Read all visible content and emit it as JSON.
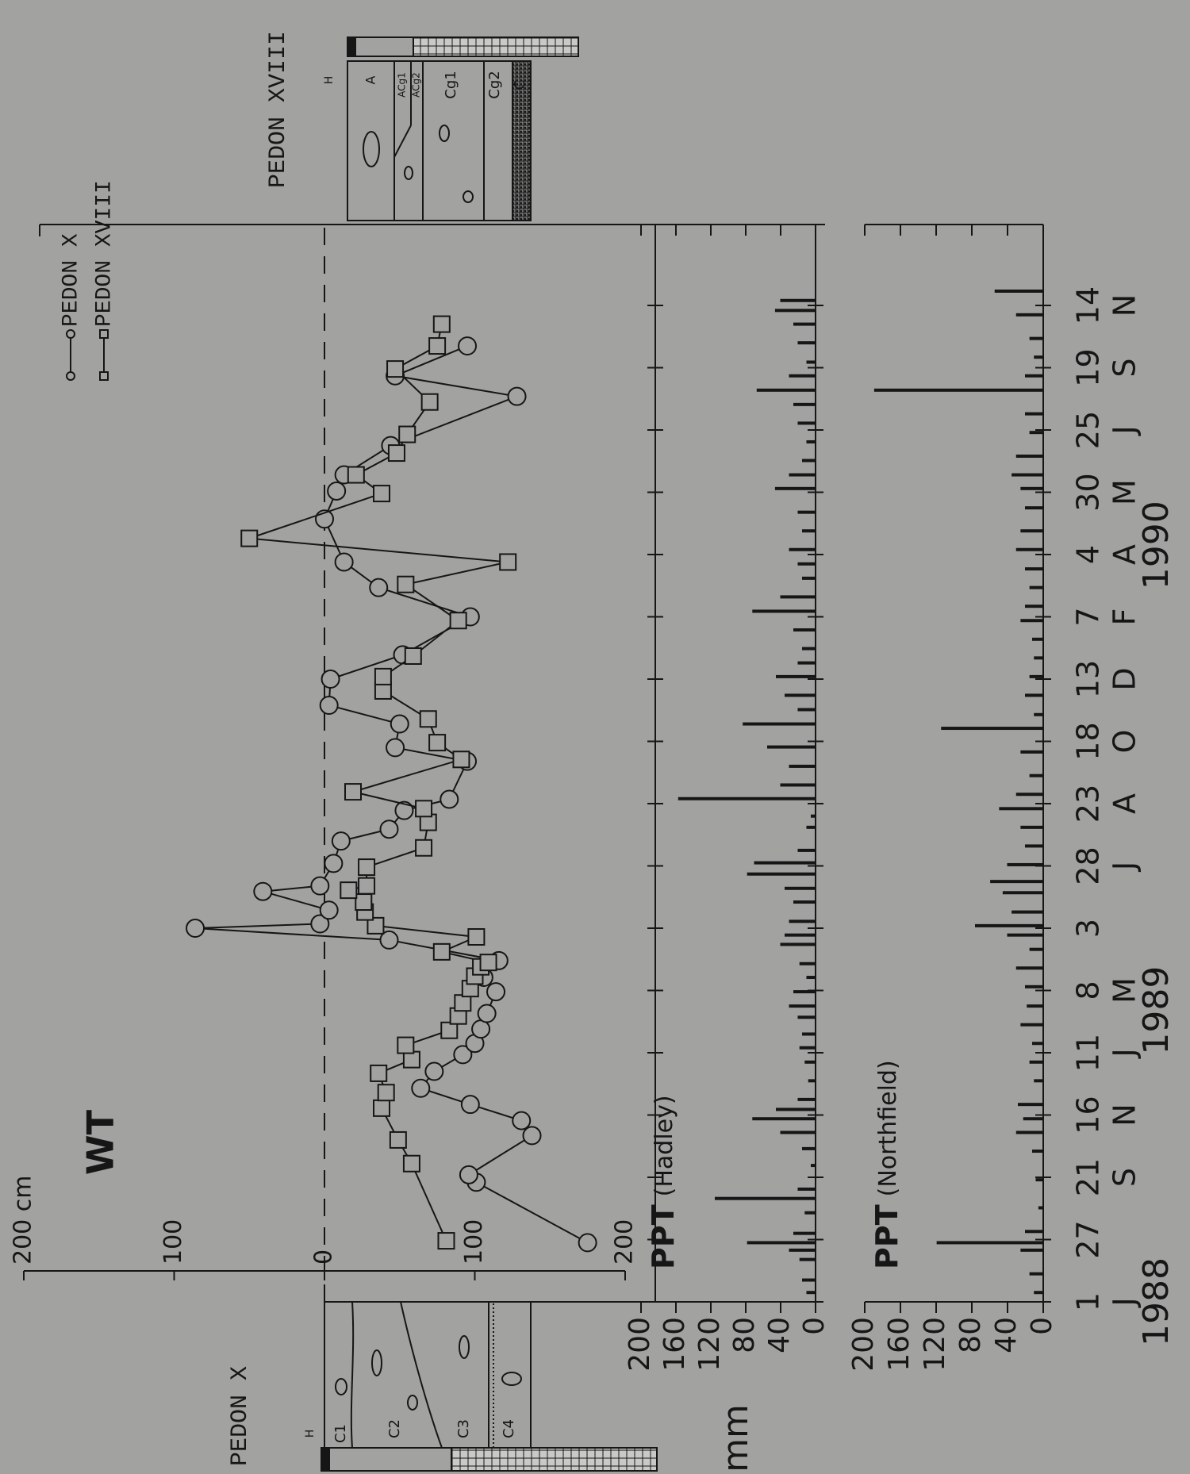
{
  "chart_data": [
    {
      "type": "line",
      "title": "WT",
      "xlim": [
        0,
        17.3
      ],
      "ylim": [
        -200,
        200
      ],
      "yticks": [
        {
          "value": -200,
          "label": "200 cm"
        },
        {
          "value": -100,
          "label": "100"
        },
        0,
        100,
        200
      ],
      "zero_line_dashed": true,
      "legend": "upper-right",
      "series": [
        {
          "name": "PEDON X",
          "marker": "circle",
          "color": "#161616",
          "x": [
            0.95,
            1.92,
            2.04,
            2.67,
            2.91,
            3.17,
            3.43,
            3.7,
            3.97,
            4.15,
            4.38,
            4.63,
            4.98,
            5.21,
            5.48,
            5.81,
            6,
            6.07,
            6.29,
            6.59,
            6.68,
            7.04,
            7.4,
            7.59,
            7.89,
            8.07,
            8.68,
            8.9,
            9.28,
            9.58,
            10,
            10.39,
            11,
            11.47,
            11.88,
            12.57,
            13.02,
            13.28,
            13.75,
            14.54,
            14.87,
            15.35
          ],
          "values": [
            175,
            101,
            96,
            138,
            131,
            97,
            64,
            73,
            92,
            100,
            104,
            108,
            114,
            106,
            116,
            43,
            -86,
            -3,
            3,
            -41,
            -3,
            6,
            11,
            43,
            53,
            83,
            95,
            47,
            50,
            3,
            4,
            52,
            97,
            36,
            13,
            0,
            8,
            13,
            44,
            128,
            47,
            95
          ]
        },
        {
          "name": "PEDON XVIII",
          "marker": "square",
          "color": "#161616",
          "x": [
            0.98,
            2.22,
            2.6,
            3.11,
            3.36,
            3.67,
            3.89,
            4.12,
            4.36,
            4.59,
            4.8,
            5.03,
            5.23,
            5.38,
            5.45,
            5.62,
            5.86,
            6.04,
            6.26,
            6.42,
            6.61,
            6.68,
            6.98,
            7.29,
            7.7,
            7.92,
            8.19,
            8.71,
            8.98,
            9.36,
            9.81,
            10.04,
            10.37,
            10.94,
            11.52,
            11.88,
            12.26,
            12.98,
            13.28,
            13.63,
            13.93,
            14.45,
            14.98,
            15.35,
            15.7
          ],
          "values": [
            81,
            58,
            49,
            38,
            41,
            36,
            58,
            54,
            83,
            89,
            92,
            97,
            100,
            104,
            109,
            78,
            101,
            34,
            27,
            26,
            16,
            28,
            28,
            66,
            69,
            66,
            19,
            91,
            75,
            69,
            39,
            39,
            59,
            89,
            54,
            122,
            -50,
            38,
            21,
            48,
            55,
            70,
            47,
            75,
            78
          ]
        }
      ]
    },
    {
      "type": "bar",
      "title": "PPT",
      "subtitle": "(Hadley)",
      "y_label": "mm",
      "color": "#161616",
      "xlim": [
        0,
        17.3
      ],
      "ylim": [
        0,
        200
      ],
      "yticks": [
        0,
        40,
        80,
        120,
        160,
        200
      ],
      "x": [
        0.15,
        0.35,
        0.68,
        0.83,
        0.95,
        1.1,
        1.43,
        1.66,
        1.81,
        2.19,
        2.46,
        2.72,
        2.94,
        3.09,
        3.25,
        3.55,
        3.85,
        4.08,
        4.3,
        4.57,
        4.75,
        4.98,
        5.21,
        5.43,
        5.74,
        5.89,
        6.11,
        6.42,
        6.64,
        6.87,
        7.05,
        7.25,
        7.62,
        7.8,
        8.08,
        8.3,
        8.6,
        8.91,
        9.28,
        9.51,
        9.74,
        10.04,
        10.26,
        10.49,
        10.79,
        11.09,
        11.32,
        11.62,
        11.85,
        12.08,
        12.38,
        12.68,
        13.06,
        13.28,
        13.51,
        13.81,
        14.11,
        14.41,
        14.64,
        14.87,
        15.09,
        15.4,
        15.7,
        15.92,
        16.08
      ],
      "values": [
        10,
        15,
        18,
        30,
        78,
        25,
        12,
        115,
        20,
        5,
        15,
        40,
        72,
        45,
        20,
        8,
        12,
        18,
        15,
        20,
        30,
        25,
        10,
        18,
        40,
        35,
        30,
        25,
        35,
        78,
        70,
        20,
        10,
        5,
        157,
        40,
        30,
        55,
        83,
        20,
        35,
        45,
        20,
        15,
        25,
        72,
        40,
        15,
        20,
        30,
        15,
        20,
        46,
        30,
        15,
        10,
        20,
        25,
        67,
        30,
        10,
        20,
        25,
        46,
        40
      ]
    },
    {
      "type": "bar",
      "title": "PPT",
      "subtitle": "(Northfield)",
      "color": "#161616",
      "xlim": [
        0,
        17.3
      ],
      "ylim": [
        0,
        200
      ],
      "yticks": [
        0,
        40,
        80,
        120,
        160,
        200
      ],
      "x": [
        0.15,
        0.45,
        0.83,
        0.95,
        1.13,
        1.51,
        1.96,
        2.42,
        2.72,
        2.94,
        3.17,
        3.55,
        3.85,
        4.15,
        4.45,
        4.75,
        5.06,
        5.36,
        5.66,
        5.89,
        6.04,
        6.26,
        6.57,
        6.75,
        7.02,
        7.32,
        7.62,
        7.92,
        8.15,
        8.45,
        8.83,
        9.21,
        9.43,
        9.74,
        10.04,
        10.34,
        10.64,
        10.94,
        11.17,
        11.47,
        11.77,
        12.08,
        12.38,
        12.75,
        13.06,
        13.28,
        13.58,
        13.96,
        14.26,
        14.64,
        14.87,
        15.17,
        15.47,
        15.85,
        16.23
      ],
      "values": [
        10,
        15,
        25,
        119,
        20,
        5,
        8,
        12,
        30,
        22,
        28,
        10,
        15,
        12,
        25,
        18,
        20,
        30,
        15,
        40,
        76,
        35,
        45,
        59,
        40,
        20,
        25,
        49,
        30,
        15,
        25,
        114,
        10,
        20,
        15,
        10,
        12,
        25,
        20,
        15,
        20,
        30,
        25,
        20,
        25,
        35,
        30,
        15,
        20,
        189,
        20,
        10,
        15,
        30,
        54
      ],
      "xticks": [
        {
          "value": 0,
          "label": "1"
        },
        {
          "value": 1,
          "label": "27"
        },
        {
          "value": 2,
          "label": "21"
        },
        {
          "value": 3,
          "label": "16"
        },
        {
          "value": 4,
          "label": "11"
        },
        {
          "value": 5,
          "label": "8"
        },
        {
          "value": 6,
          "label": "3"
        },
        {
          "value": 7,
          "label": "28"
        },
        {
          "value": 8,
          "label": "23"
        },
        {
          "value": 9,
          "label": "18"
        },
        {
          "value": 10,
          "label": "13"
        },
        {
          "value": 11,
          "label": "7"
        },
        {
          "value": 12,
          "label": "4"
        },
        {
          "value": 13,
          "label": "30"
        },
        {
          "value": 14,
          "label": "25"
        },
        {
          "value": 15,
          "label": "19"
        },
        {
          "value": 16,
          "label": "14"
        }
      ],
      "xtick_months": [
        "J",
        null,
        "S",
        "N",
        "J",
        "M",
        null,
        "J",
        "A",
        "O",
        "D",
        "F",
        "A",
        "M",
        "J",
        "S",
        "N"
      ],
      "year_ticks": [
        {
          "value": 0,
          "label": "1988"
        },
        {
          "value": 4.68,
          "label": "1989"
        },
        {
          "value": 12.15,
          "label": "1990"
        }
      ]
    }
  ],
  "profiles": {
    "pedon_x": {
      "title": "PEDON X",
      "h": "H",
      "horizons": [
        "C1",
        "C2",
        "C3",
        "C4"
      ]
    },
    "pedon_xviii": {
      "title": "PEDON XVIII",
      "h": "H",
      "horizons": [
        "A",
        "ACg1",
        "ACg2",
        "Cg1",
        "Cg2",
        "C"
      ]
    }
  }
}
